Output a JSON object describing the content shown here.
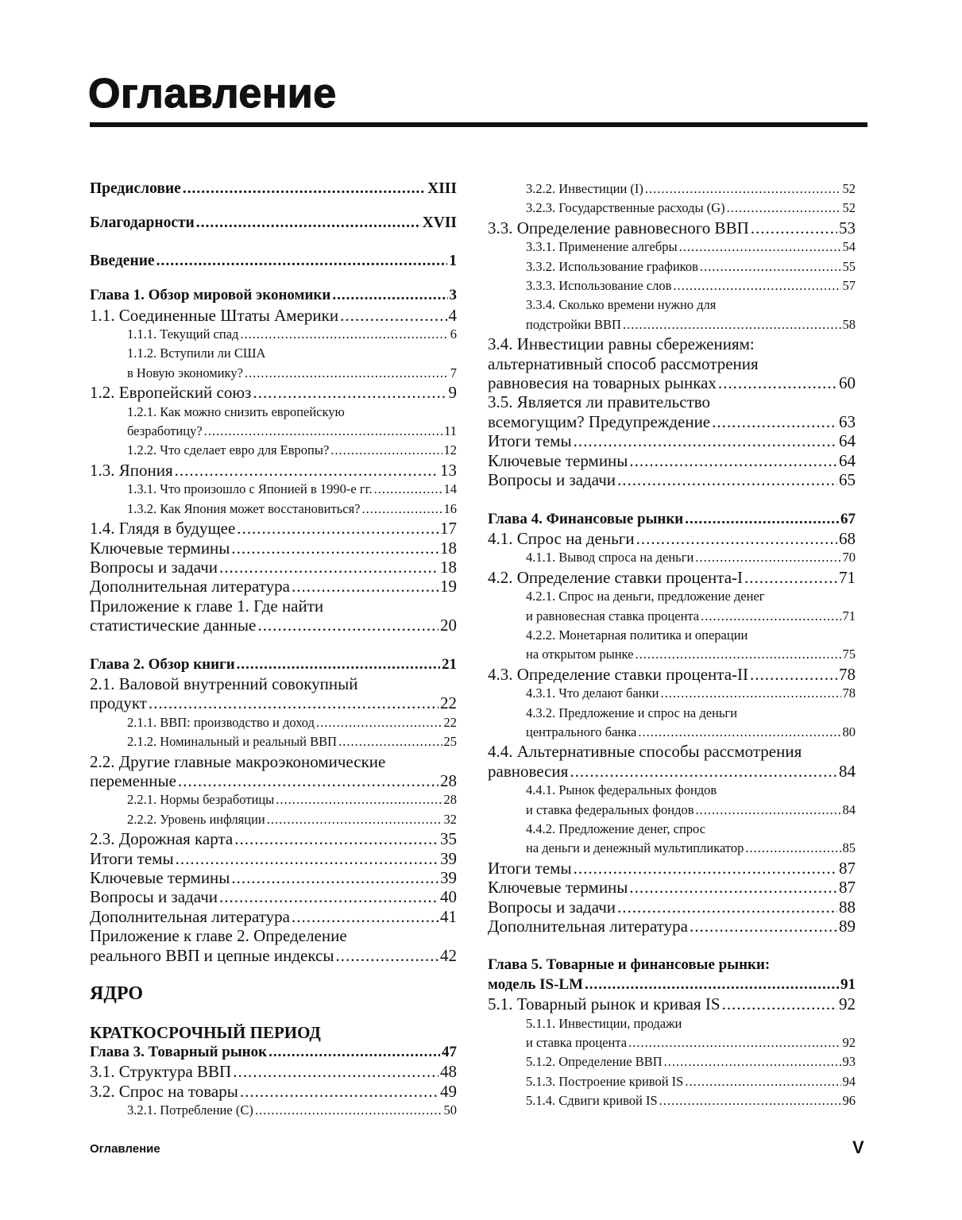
{
  "header": {
    "title": "Оглавление"
  },
  "footer": {
    "running_title": "Оглавление",
    "page_number": "V"
  },
  "left_column": [
    {
      "kind": "front",
      "lines": [
        "Предисловие"
      ],
      "page": "XIII"
    },
    {
      "kind": "front f2",
      "lines": [
        "Благодарности"
      ],
      "page": "XVII"
    },
    {
      "kind": "front",
      "lines": [
        "Введение"
      ],
      "page": "1"
    },
    {
      "kind": "chapter",
      "lines": [
        "Глава 1. Обзор мировой экономики"
      ],
      "page": "3"
    },
    {
      "kind": "section",
      "lines": [
        "1.1. Соединенные Штаты Америки"
      ],
      "page": "4"
    },
    {
      "kind": "subsection",
      "lines": [
        "1.1.1. Текущий спад"
      ],
      "page": "6"
    },
    {
      "kind": "subsection",
      "lines": [
        "1.1.2. Вступили ли США",
        "в Новую экономику?"
      ],
      "page": "7"
    },
    {
      "kind": "section",
      "lines": [
        "1.2. Европейский союз"
      ],
      "page": "9"
    },
    {
      "kind": "subsection",
      "lines": [
        "1.2.1. Как можно снизить европейскую",
        "безработицу?"
      ],
      "page": "11"
    },
    {
      "kind": "subsection",
      "lines": [
        "1.2.2. Что сделает евро для Европы?"
      ],
      "page": "12"
    },
    {
      "kind": "section",
      "lines": [
        "1.3. Япония"
      ],
      "page": "13"
    },
    {
      "kind": "subsection",
      "lines": [
        "1.3.1. Что произошло с Японией в 1990-е гг."
      ],
      "page": "14"
    },
    {
      "kind": "subsection",
      "lines": [
        "1.3.2. Как Япония может восстановиться?"
      ],
      "page": "16"
    },
    {
      "kind": "section",
      "lines": [
        "1.4. Глядя в будущее"
      ],
      "page": "17"
    },
    {
      "kind": "section",
      "lines": [
        "Ключевые термины"
      ],
      "page": "18"
    },
    {
      "kind": "section",
      "lines": [
        "Вопросы и задачи"
      ],
      "page": "18"
    },
    {
      "kind": "section",
      "lines": [
        "Дополнительная литература"
      ],
      "page": "19"
    },
    {
      "kind": "section",
      "lines": [
        "Приложение к главе 1. Где найти",
        "статистические данные"
      ],
      "page": "20"
    },
    {
      "kind": "chapter",
      "lines": [
        "Глава 2. Обзор книги"
      ],
      "page": "21"
    },
    {
      "kind": "section",
      "lines": [
        "2.1. Валовой внутренний совокупный",
        "продукт"
      ],
      "page": "22"
    },
    {
      "kind": "subsection",
      "lines": [
        "2.1.1. ВВП: производство и доход"
      ],
      "page": "22"
    },
    {
      "kind": "subsection",
      "lines": [
        "2.1.2. Номинальный и реальный ВВП"
      ],
      "page": "25"
    },
    {
      "kind": "section",
      "lines": [
        "2.2. Другие главные макроэкономические",
        "переменные"
      ],
      "page": "28"
    },
    {
      "kind": "subsection",
      "lines": [
        "2.2.1. Нормы безработицы"
      ],
      "page": "28"
    },
    {
      "kind": "subsection",
      "lines": [
        "2.2.2. Уровень инфляции"
      ],
      "page": "32"
    },
    {
      "kind": "section",
      "lines": [
        "2.3. Дорожная карта"
      ],
      "page": "35"
    },
    {
      "kind": "section",
      "lines": [
        "Итоги темы"
      ],
      "page": "39"
    },
    {
      "kind": "section",
      "lines": [
        "Ключевые термины"
      ],
      "page": "39"
    },
    {
      "kind": "section",
      "lines": [
        "Вопросы и задачи"
      ],
      "page": "40"
    },
    {
      "kind": "section",
      "lines": [
        "Дополнительная литература"
      ],
      "page": "41"
    },
    {
      "kind": "section",
      "lines": [
        "Приложение к главе 2. Определение",
        "реального ВВП и цепные индексы"
      ],
      "page": "42"
    },
    {
      "kind": "part",
      "lines": [
        "ЯДРО"
      ],
      "page": ""
    },
    {
      "kind": "period",
      "lines": [
        "КРАТКОСРОЧНЫЙ ПЕРИОД"
      ],
      "page": ""
    },
    {
      "kind": "chapter",
      "lines": [
        "Глава 3. Товарный рынок"
      ],
      "page": "47"
    },
    {
      "kind": "section",
      "lines": [
        "3.1. Структура ВВП"
      ],
      "page": "48"
    },
    {
      "kind": "section",
      "lines": [
        "3.2. Спрос на товары"
      ],
      "page": "49"
    },
    {
      "kind": "subsection",
      "lines": [
        "3.2.1. Потребление (C)"
      ],
      "page": "50"
    }
  ],
  "right_column": [
    {
      "kind": "subsection",
      "lines": [
        "3.2.2. Инвестиции (I)"
      ],
      "page": "52"
    },
    {
      "kind": "subsection",
      "lines": [
        "3.2.3. Государственные расходы (G)"
      ],
      "page": "52"
    },
    {
      "kind": "section",
      "lines": [
        "3.3. Определение равновесного ВВП"
      ],
      "page": "53"
    },
    {
      "kind": "subsection",
      "lines": [
        "3.3.1. Применение алгебры"
      ],
      "page": "54"
    },
    {
      "kind": "subsection",
      "lines": [
        "3.3.2. Использование графиков"
      ],
      "page": "55"
    },
    {
      "kind": "subsection",
      "lines": [
        "3.3.3. Использование слов"
      ],
      "page": "57"
    },
    {
      "kind": "subsection",
      "lines": [
        "3.3.4. Сколько времени нужно для",
        "подстройки ВВП"
      ],
      "page": "58"
    },
    {
      "kind": "section",
      "lines": [
        "3.4. Инвестиции равны сбережениям:",
        "альтернативный способ рассмотрения",
        "равновесия на товарных рынках"
      ],
      "page": "60"
    },
    {
      "kind": "section",
      "lines": [
        "3.5. Является ли правительство",
        "всемогущим? Предупреждение"
      ],
      "page": "63"
    },
    {
      "kind": "section",
      "lines": [
        "Итоги темы"
      ],
      "page": "64"
    },
    {
      "kind": "section",
      "lines": [
        "Ключевые термины"
      ],
      "page": "64"
    },
    {
      "kind": "section",
      "lines": [
        "Вопросы и задачи"
      ],
      "page": "65"
    },
    {
      "kind": "chapter",
      "lines": [
        "Глава 4. Финансовые рынки"
      ],
      "page": "67"
    },
    {
      "kind": "section",
      "lines": [
        "4.1. Спрос на деньги"
      ],
      "page": "68"
    },
    {
      "kind": "subsection",
      "lines": [
        "4.1.1. Вывод спроса на деньги"
      ],
      "page": "70"
    },
    {
      "kind": "section",
      "lines": [
        "4.2. Определение ставки процента-I"
      ],
      "page": "71"
    },
    {
      "kind": "subsection",
      "lines": [
        "4.2.1. Спрос на деньги, предложение денег",
        "и равновесная ставка процента"
      ],
      "page": "71"
    },
    {
      "kind": "subsection",
      "lines": [
        "4.2.2. Монетарная политика и операции",
        "на открытом рынке"
      ],
      "page": "75"
    },
    {
      "kind": "section",
      "lines": [
        "4.3. Определение ставки процента-II"
      ],
      "page": "78"
    },
    {
      "kind": "subsection",
      "lines": [
        "4.3.1. Что делают банки"
      ],
      "page": "78"
    },
    {
      "kind": "subsection",
      "lines": [
        "4.3.2. Предложение и спрос на деньги",
        "центрального банка"
      ],
      "page": "80"
    },
    {
      "kind": "section",
      "lines": [
        "4.4. Альтернативные способы рассмотрения",
        "равновесия"
      ],
      "page": "84"
    },
    {
      "kind": "subsection",
      "lines": [
        "4.4.1. Рынок федеральных фондов",
        "и ставка федеральных фондов"
      ],
      "page": "84"
    },
    {
      "kind": "subsection",
      "lines": [
        "4.4.2. Предложение денег, спрос",
        "на деньги и денежный мультипликатор"
      ],
      "page": "85"
    },
    {
      "kind": "section",
      "lines": [
        "Итоги темы"
      ],
      "page": "87"
    },
    {
      "kind": "section",
      "lines": [
        "Ключевые термины"
      ],
      "page": "87"
    },
    {
      "kind": "section",
      "lines": [
        "Вопросы и задачи"
      ],
      "page": "88"
    },
    {
      "kind": "section",
      "lines": [
        "Дополнительная литература"
      ],
      "page": "89"
    },
    {
      "kind": "chapter",
      "lines": [
        "Глава 5. Товарные и финансовые рынки:",
        "модель IS-LM"
      ],
      "page": "91"
    },
    {
      "kind": "section",
      "lines": [
        "5.1. Товарный рынок и кривая IS"
      ],
      "page": "92"
    },
    {
      "kind": "subsection",
      "lines": [
        "5.1.1. Инвестиции, продажи",
        "и ставка процента"
      ],
      "page": "92"
    },
    {
      "kind": "subsection",
      "lines": [
        "5.1.2. Определение ВВП"
      ],
      "page": "93"
    },
    {
      "kind": "subsection",
      "lines": [
        "5.1.3. Построение кривой IS"
      ],
      "page": "94"
    },
    {
      "kind": "subsection",
      "lines": [
        "5.1.4. Сдвиги кривой IS"
      ],
      "page": "96"
    }
  ]
}
